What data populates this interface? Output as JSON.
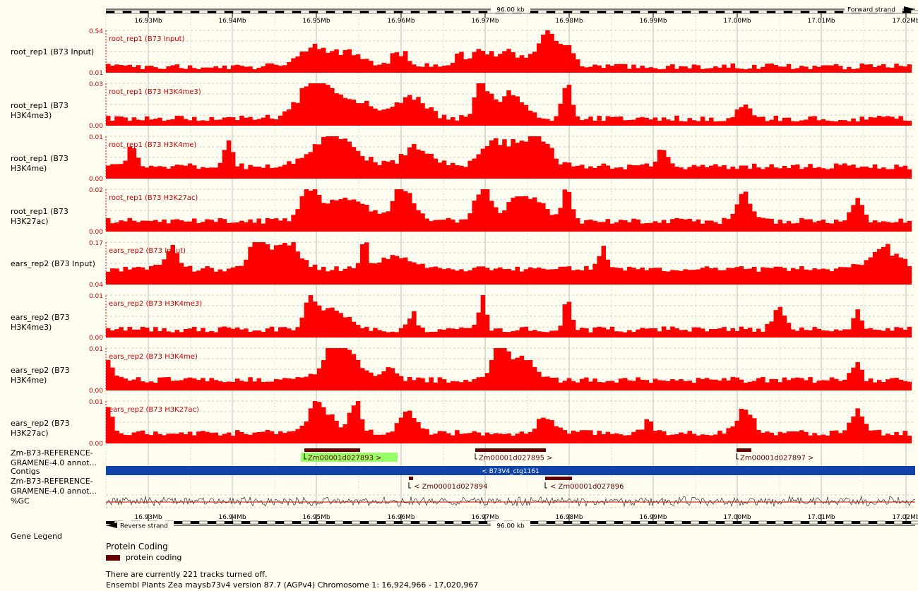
{
  "ruler": {
    "span_label": "96.00 kb",
    "forward_label": "Forward strand",
    "reverse_label": "Reverse strand",
    "ticks": [
      "16.93Mb",
      "16.94Mb",
      "16.95Mb",
      "16.96Mb",
      "16.97Mb",
      "16.98Mb",
      "16.99Mb",
      "17.00Mb",
      "17.01Mb",
      "17.02Mb"
    ]
  },
  "tracks": [
    {
      "label": "root_rep1 (B73 Input)",
      "title": "root_rep1 (B73 Input)",
      "ymax": "0.54",
      "ymin": "0.01",
      "seed": 11
    },
    {
      "label": "root_rep1 (B73 H3K4me3)",
      "title": "root_rep1 (B73 H3K4me3)",
      "ymax": "0.03",
      "ymin": "0.00",
      "seed": 23
    },
    {
      "label": "root_rep1 (B73 H3K4me)",
      "title": "root_rep1 (B73 H3K4me)",
      "ymax": "0.01",
      "ymin": "0.00",
      "seed": 37
    },
    {
      "label": "root_rep1 (B73 H3K27ac)",
      "title": "root_rep1 (B73 H3K27ac)",
      "ymax": "0.02",
      "ymin": "0.00",
      "seed": 41
    },
    {
      "label": "ears_rep2 (B73 Input)",
      "title": "ears_rep2 (B73 Input)",
      "ymax": "0.17",
      "ymin": "0.04",
      "seed": 53
    },
    {
      "label": "ears_rep2 (B73 H3K4me3)",
      "title": "ears_rep2 (B73 H3K4me3)",
      "ymax": "0.01",
      "ymin": "0.00",
      "seed": 67
    },
    {
      "label": "ears_rep2 (B73 H3K4me)",
      "title": "ears_rep2 (B73 H3K4me)",
      "ymax": "0.01",
      "ymin": "0.00",
      "seed": 71
    },
    {
      "label": "ears_rep2 (B73 H3K27ac)",
      "title": "ears_rep2 (B73 H3K27ac)",
      "ymax": "0.01",
      "ymin": "0.00",
      "seed": 83
    }
  ],
  "annotation_label": "Zm-B73-REFERENCE-GRAMENE-4.0 annot...",
  "forward_genes": [
    {
      "name": "Zm00001d027893 >",
      "highlight": true
    },
    {
      "name": "Zm00001d027895 >",
      "highlight": false
    },
    {
      "name": "Zm00001d027897 >",
      "highlight": false
    }
  ],
  "contigs": {
    "label": "Contigs",
    "name": "< B73V4_ctg1161"
  },
  "reverse_genes": [
    {
      "name": "< Zm00001d027894"
    },
    {
      "name": "< Zm00001d027896"
    }
  ],
  "gc_label": "%GC",
  "gene_legend": {
    "label": "Gene Legend",
    "heading": "Protein Coding",
    "item": "protein coding"
  },
  "footer": {
    "tracks_off": "There are currently 221 tracks turned off.",
    "version": "Ensembl Plants Zea maysb73v4 version 87.7 (AGPv4) Chromosome 1: 16,924,966 - 17,020,967"
  },
  "colors": {
    "signal": "#ff0000",
    "gene": "#660000",
    "highlight": "#99ff66",
    "contig": "#1144aa",
    "background": "#fffdf0"
  }
}
